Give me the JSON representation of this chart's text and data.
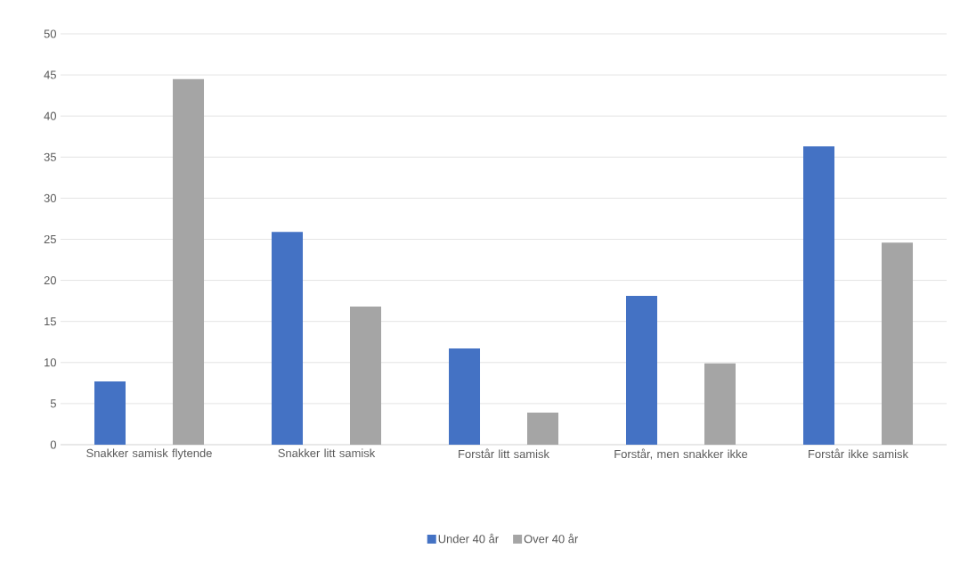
{
  "chart_data": {
    "type": "bar",
    "categories": [
      "Snakker samisk flytende",
      "Snakker litt samisk",
      "Forstår litt samisk",
      "Forstår, men snakker ikke",
      "Forstår ikke samisk"
    ],
    "series": [
      {
        "name": "Under 40 år",
        "color": "#4472c4",
        "values": [
          7.7,
          25.9,
          11.7,
          18.1,
          36.3
        ]
      },
      {
        "name": "Over 40 år",
        "color": "#a5a5a5",
        "values": [
          44.5,
          16.8,
          3.9,
          9.9,
          24.6
        ]
      }
    ],
    "ylim": [
      0,
      50
    ],
    "yticks": [
      0,
      5,
      10,
      15,
      20,
      25,
      30,
      35,
      40,
      45,
      50
    ],
    "grid": "y",
    "legend": "bottom"
  }
}
